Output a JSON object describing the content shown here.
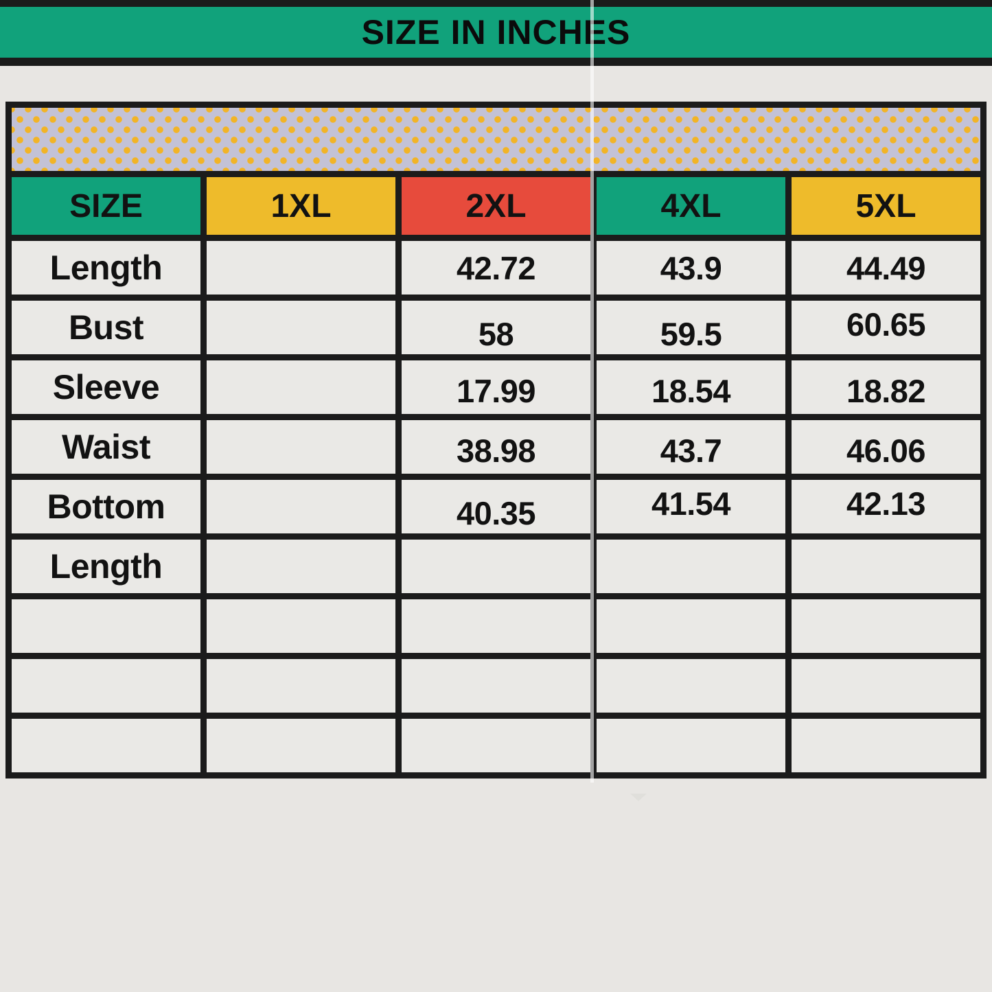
{
  "banner": {
    "title": "SIZE IN INCHES"
  },
  "colors": {
    "header_green": "#11a27b",
    "header_yellow": "#eebb2b",
    "header_red": "#e74b3c",
    "band_background": "#c3c2d6",
    "band_dot": "#f2b426",
    "cell_background": "#eae9e6",
    "border_black": "#1b1b1b",
    "page_background": "#e8e6e3"
  },
  "chart_data": {
    "type": "table",
    "title": "SIZE IN INCHES",
    "columns": [
      "SIZE",
      "1XL",
      "2XL",
      "4XL",
      "5XL"
    ],
    "header_colors": [
      "green",
      "yellow",
      "red",
      "green",
      "yellow"
    ],
    "rows": [
      {
        "label": "Length",
        "values": [
          "",
          "42.72",
          "43.9",
          "44.49"
        ]
      },
      {
        "label": "Bust",
        "values": [
          "",
          "58",
          "59.5",
          "60.65"
        ]
      },
      {
        "label": "Sleeve",
        "values": [
          "",
          "17.99",
          "18.54",
          "18.82"
        ]
      },
      {
        "label": "Waist",
        "values": [
          "",
          "38.98",
          "43.7",
          "46.06"
        ]
      },
      {
        "label": "Bottom",
        "values": [
          "",
          "40.35",
          "41.54",
          "42.13"
        ]
      },
      {
        "label": "Length",
        "values": [
          "",
          "",
          "",
          ""
        ]
      },
      {
        "label": "",
        "values": [
          "",
          "",
          "",
          ""
        ]
      },
      {
        "label": "",
        "values": [
          "",
          "",
          "",
          ""
        ]
      },
      {
        "label": "",
        "values": [
          "",
          "",
          "",
          ""
        ]
      }
    ]
  }
}
